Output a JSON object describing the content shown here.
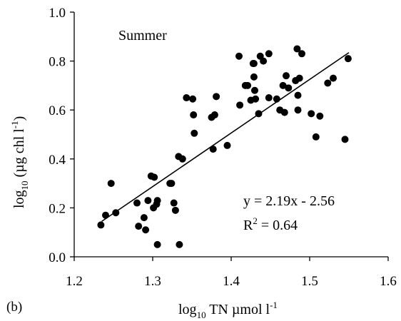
{
  "chart_data": {
    "type": "scatter",
    "panel_label": "(b)",
    "annotation": "Summer",
    "xlabel": {
      "prefix": "log",
      "sub": "10",
      "main": " TN µmol l",
      "sup": "-1"
    },
    "ylabel": {
      "prefix": "log",
      "sub": "10",
      "main": " (µg chl l",
      "sup": "-1",
      "close": ")"
    },
    "xlim": [
      1.2,
      1.6
    ],
    "ylim": [
      0.0,
      1.0
    ],
    "xticks": [
      1.2,
      1.3,
      1.4,
      1.5,
      1.6
    ],
    "xtick_labels": [
      "1.2",
      "1.3",
      "1.4",
      "1.5",
      "1.6"
    ],
    "yticks": [
      0.0,
      0.2,
      0.4,
      0.6,
      0.8,
      1.0
    ],
    "ytick_labels": [
      "0.0",
      "0.2",
      "0.4",
      "0.6",
      "0.8",
      "1.0"
    ],
    "grid": false,
    "equation_text": "y = 2.19x - 2.56",
    "r2": {
      "label": "R",
      "sup": "2",
      "value": " = 0.64"
    },
    "trendline": {
      "slope": 2.19,
      "intercept": -2.56,
      "x_range": [
        1.235,
        1.55
      ]
    },
    "points": [
      {
        "x": 1.234,
        "y": 0.13
      },
      {
        "x": 1.24,
        "y": 0.17
      },
      {
        "x": 1.247,
        "y": 0.3
      },
      {
        "x": 1.253,
        "y": 0.18
      },
      {
        "x": 1.28,
        "y": 0.22
      },
      {
        "x": 1.282,
        "y": 0.125
      },
      {
        "x": 1.289,
        "y": 0.16
      },
      {
        "x": 1.291,
        "y": 0.11
      },
      {
        "x": 1.294,
        "y": 0.23
      },
      {
        "x": 1.298,
        "y": 0.33
      },
      {
        "x": 1.301,
        "y": 0.2
      },
      {
        "x": 1.302,
        "y": 0.325
      },
      {
        "x": 1.305,
        "y": 0.215
      },
      {
        "x": 1.306,
        "y": 0.05
      },
      {
        "x": 1.306,
        "y": 0.23
      },
      {
        "x": 1.322,
        "y": 0.3
      },
      {
        "x": 1.324,
        "y": 0.3
      },
      {
        "x": 1.327,
        "y": 0.22
      },
      {
        "x": 1.329,
        "y": 0.19
      },
      {
        "x": 1.333,
        "y": 0.41
      },
      {
        "x": 1.334,
        "y": 0.05
      },
      {
        "x": 1.338,
        "y": 0.4
      },
      {
        "x": 1.343,
        "y": 0.65
      },
      {
        "x": 1.351,
        "y": 0.645
      },
      {
        "x": 1.352,
        "y": 0.58
      },
      {
        "x": 1.353,
        "y": 0.505
      },
      {
        "x": 1.375,
        "y": 0.57
      },
      {
        "x": 1.377,
        "y": 0.44
      },
      {
        "x": 1.379,
        "y": 0.58
      },
      {
        "x": 1.381,
        "y": 0.655
      },
      {
        "x": 1.395,
        "y": 0.455
      },
      {
        "x": 1.41,
        "y": 0.82
      },
      {
        "x": 1.411,
        "y": 0.62
      },
      {
        "x": 1.418,
        "y": 0.7
      },
      {
        "x": 1.421,
        "y": 0.7
      },
      {
        "x": 1.425,
        "y": 0.64
      },
      {
        "x": 1.428,
        "y": 0.79
      },
      {
        "x": 1.429,
        "y": 0.79
      },
      {
        "x": 1.429,
        "y": 0.735
      },
      {
        "x": 1.43,
        "y": 0.68
      },
      {
        "x": 1.431,
        "y": 0.645
      },
      {
        "x": 1.435,
        "y": 0.585
      },
      {
        "x": 1.437,
        "y": 0.82
      },
      {
        "x": 1.441,
        "y": 0.8
      },
      {
        "x": 1.448,
        "y": 0.83
      },
      {
        "x": 1.448,
        "y": 0.65
      },
      {
        "x": 1.458,
        "y": 0.645
      },
      {
        "x": 1.462,
        "y": 0.6
      },
      {
        "x": 1.466,
        "y": 0.7
      },
      {
        "x": 1.468,
        "y": 0.59
      },
      {
        "x": 1.47,
        "y": 0.74
      },
      {
        "x": 1.473,
        "y": 0.69
      },
      {
        "x": 1.482,
        "y": 0.72
      },
      {
        "x": 1.484,
        "y": 0.85
      },
      {
        "x": 1.485,
        "y": 0.6
      },
      {
        "x": 1.485,
        "y": 0.66
      },
      {
        "x": 1.487,
        "y": 0.73
      },
      {
        "x": 1.49,
        "y": 0.83
      },
      {
        "x": 1.502,
        "y": 0.585
      },
      {
        "x": 1.508,
        "y": 0.49
      },
      {
        "x": 1.513,
        "y": 0.575
      },
      {
        "x": 1.523,
        "y": 0.71
      },
      {
        "x": 1.53,
        "y": 0.73
      },
      {
        "x": 1.545,
        "y": 0.48
      },
      {
        "x": 1.549,
        "y": 0.81
      }
    ]
  }
}
